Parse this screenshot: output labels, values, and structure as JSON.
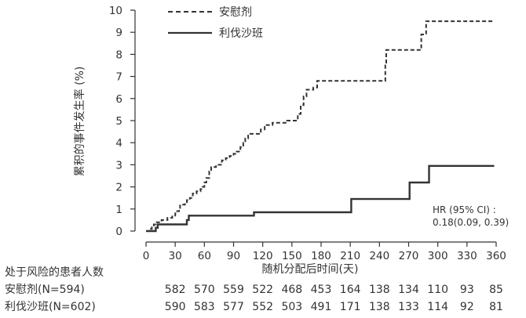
{
  "chart_data": {
    "type": "line",
    "chart_kind": "kaplan-meier cumulative incidence",
    "xlabel": "随机分配后时间(天)",
    "ylabel": "累积的事件发生率 (%)",
    "xlim": [
      0,
      360
    ],
    "ylim": [
      0,
      10
    ],
    "xticks": [
      0,
      30,
      60,
      90,
      120,
      150,
      180,
      210,
      240,
      270,
      300,
      330,
      360
    ],
    "yticks": [
      0,
      1,
      2,
      3,
      4,
      5,
      6,
      7,
      8,
      9,
      10
    ],
    "grid": false,
    "legend_position": "top-center",
    "series": [
      {
        "name": "安慰剂",
        "style": "dashed",
        "color": "#333333",
        "points": [
          [
            0,
            0
          ],
          [
            5,
            0.1
          ],
          [
            6,
            0.2
          ],
          [
            8,
            0.3
          ],
          [
            10,
            0.4
          ],
          [
            14,
            0.4
          ],
          [
            16,
            0.5
          ],
          [
            19,
            0.5
          ],
          [
            22,
            0.6
          ],
          [
            25,
            0.6
          ],
          [
            27,
            0.7
          ],
          [
            30,
            0.8
          ],
          [
            31,
            0.9
          ],
          [
            34,
            1.0
          ],
          [
            35,
            1.2
          ],
          [
            40,
            1.3
          ],
          [
            42,
            1.4
          ],
          [
            45,
            1.5
          ],
          [
            48,
            1.7
          ],
          [
            52,
            1.8
          ],
          [
            56,
            1.9
          ],
          [
            58,
            2.0
          ],
          [
            60,
            2.2
          ],
          [
            62,
            2.4
          ],
          [
            65,
            2.7
          ],
          [
            67,
            2.9
          ],
          [
            72,
            3.0
          ],
          [
            78,
            3.2
          ],
          [
            82,
            3.3
          ],
          [
            86,
            3.4
          ],
          [
            90,
            3.5
          ],
          [
            92,
            3.6
          ],
          [
            97,
            3.8
          ],
          [
            100,
            4.0
          ],
          [
            102,
            4.2
          ],
          [
            105,
            4.4
          ],
          [
            118,
            4.6
          ],
          [
            122,
            4.8
          ],
          [
            130,
            4.9
          ],
          [
            140,
            4.9
          ],
          [
            145,
            5.0
          ],
          [
            155,
            5.0
          ],
          [
            156,
            5.3
          ],
          [
            159,
            5.7
          ],
          [
            162,
            6.1
          ],
          [
            165,
            6.4
          ],
          [
            172,
            6.5
          ],
          [
            176,
            6.8
          ],
          [
            208,
            6.8
          ],
          [
            218,
            6.8
          ],
          [
            230,
            6.8
          ],
          [
            246,
            7.5
          ],
          [
            247,
            8.2
          ],
          [
            280,
            8.2
          ],
          [
            283,
            8.9
          ],
          [
            288,
            9.5
          ],
          [
            358,
            9.5
          ]
        ]
      },
      {
        "name": "利伐沙班",
        "style": "solid",
        "color": "#333333",
        "points": [
          [
            0,
            0
          ],
          [
            10,
            0.15
          ],
          [
            12,
            0.3
          ],
          [
            40,
            0.3
          ],
          [
            42,
            0.5
          ],
          [
            44,
            0.7
          ],
          [
            110,
            0.7
          ],
          [
            111,
            0.85
          ],
          [
            210,
            0.85
          ],
          [
            211,
            1.45
          ],
          [
            270,
            1.45
          ],
          [
            271,
            2.2
          ],
          [
            290,
            2.2
          ],
          [
            291,
            2.95
          ],
          [
            358,
            2.95
          ]
        ]
      }
    ],
    "annotation": {
      "line1": "HR (95% CI) :",
      "line2": "0.18(0.09, 0.39)"
    }
  },
  "risk_table": {
    "title": "处于风险的患者人数",
    "rows": [
      {
        "label": "安慰剂(N=594)",
        "values": [
          "582",
          "570",
          "559",
          "522",
          "468",
          "453",
          "164",
          "138",
          "134",
          "110",
          "93",
          "85"
        ]
      },
      {
        "label": "利伐沙班(N=602)",
        "values": [
          "590",
          "583",
          "577",
          "552",
          "503",
          "491",
          "171",
          "138",
          "133",
          "114",
          "92",
          "81"
        ]
      }
    ],
    "value_days": [
      30,
      60,
      90,
      120,
      150,
      180,
      210,
      240,
      270,
      300,
      330,
      360
    ]
  }
}
